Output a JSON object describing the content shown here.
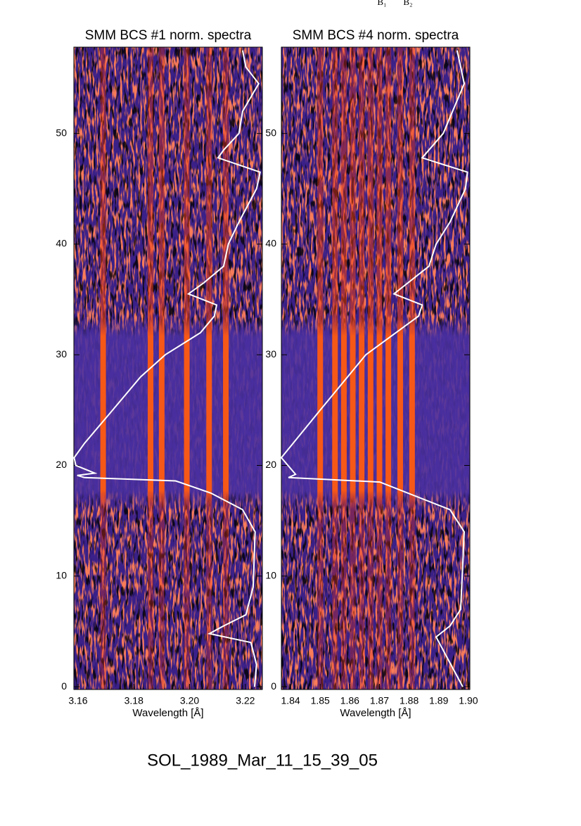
{
  "annotations": [
    "B₁",
    "B₂"
  ],
  "caption": "SOL_1989_Mar_11_15_39_05",
  "chart_data": [
    {
      "type": "spectrogram",
      "title": "SMM BCS #1 norm. spectra",
      "x_label": "Wavelength [Å]",
      "xlim": [
        3.1585,
        3.2261
      ],
      "xticks": [
        3.16,
        3.18,
        {
          "value": 3.2,
          "label": "3.20"
        },
        3.22
      ],
      "ylim": [
        -0.25,
        57.8
      ],
      "yticks": [
        0,
        10,
        20,
        30,
        40,
        50
      ],
      "bright_lines": [
        3.169,
        3.186,
        3.19,
        3.199,
        3.207,
        3.213
      ],
      "series": [
        {
          "color": "#ffffff",
          "y": [
            0,
            2,
            4,
            4.8,
            5.5,
            6.5,
            9,
            14,
            16,
            17.5,
            18.6,
            18.9,
            19.1,
            19.3,
            20,
            20.7,
            22,
            25,
            28,
            30,
            32,
            33.5,
            34.5,
            35.5,
            36.5,
            38,
            40,
            42,
            45,
            46.5,
            47.8,
            48.5,
            50,
            52,
            54.5,
            56,
            57.5
          ],
          "x": [
            3.2233,
            3.224,
            3.222,
            3.2071,
            3.2122,
            3.2202,
            3.2228,
            3.2235,
            3.219,
            3.2076,
            3.195,
            3.1623,
            3.1597,
            3.166,
            3.1592,
            3.1586,
            3.1623,
            3.1724,
            3.1824,
            3.1913,
            3.2039,
            3.2089,
            3.2097,
            3.1996,
            3.2051,
            3.2122,
            3.2139,
            3.2177,
            3.224,
            3.2253,
            3.2102,
            3.2122,
            3.2177,
            3.219,
            3.2248,
            3.2202,
            3.219
          ]
        }
      ]
    },
    {
      "type": "spectrogram",
      "title": "SMM BCS #4 norm. spectra",
      "x_label": "Wavelength [Å]",
      "xlim": [
        1.8369,
        1.9005
      ],
      "xticks": [
        1.84,
        1.85,
        1.86,
        1.87,
        1.88,
        1.89,
        {
          "value": 1.9,
          "label": "1.90"
        }
      ],
      "ylim": [
        -0.25,
        57.8
      ],
      "yticks": [
        0,
        10,
        20,
        30,
        40,
        50
      ],
      "bright_lines": [
        1.85,
        1.855,
        1.858,
        1.861,
        1.864,
        1.867,
        1.87,
        1.873,
        1.877,
        1.881
      ],
      "series": [
        {
          "color": "#ffffff",
          "y": [
            0,
            4.5,
            5.5,
            7,
            14,
            16,
            18.5,
            18.9,
            19.2,
            20.7,
            25,
            30,
            33.5,
            34.5,
            35.5,
            38,
            40,
            42,
            45,
            46.5,
            47.8,
            50,
            54.5,
            57.5
          ],
          "x": [
            1.8981,
            1.8891,
            1.8938,
            1.8974,
            1.8986,
            1.8938,
            1.8701,
            1.8393,
            1.8417,
            1.8369,
            1.85,
            1.8654,
            1.8832,
            1.8844,
            1.8749,
            1.8867,
            1.8891,
            1.8938,
            1.899,
            1.8997,
            1.8844,
            1.8915,
            1.8986,
            1.8962
          ]
        }
      ]
    }
  ]
}
